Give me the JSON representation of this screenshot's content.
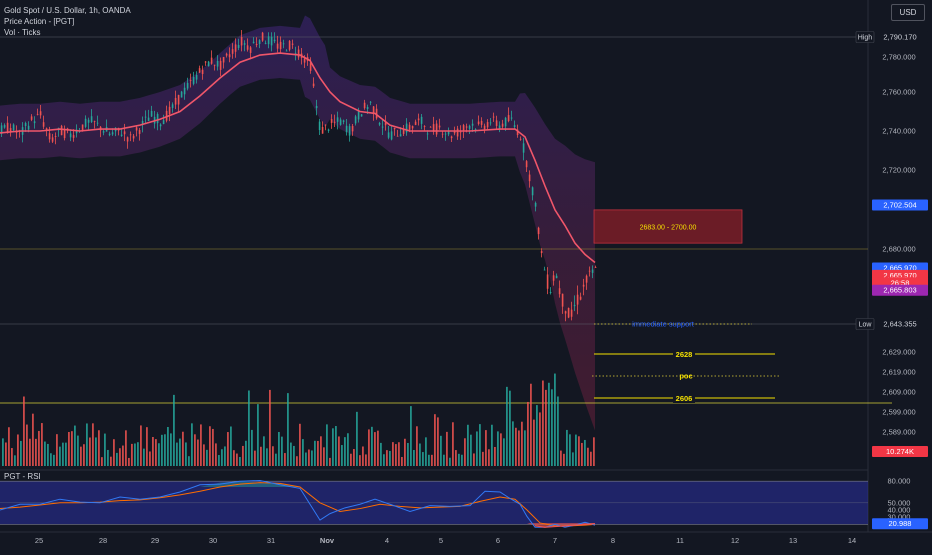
{
  "header": {
    "symbol": "Gold Spot / U.S. Dollar, 1h, OANDA",
    "indicator_1": "Price Action - [PGT]",
    "indicator_2": "Vol · Ticks",
    "currency": "USD"
  },
  "rsi_panel": {
    "title": "PGT - RSI"
  },
  "colors": {
    "background": "#131722",
    "up": "#26a69a",
    "down": "#ef5350",
    "ma": "#f0566a",
    "band": "#7b3fc4",
    "level": "#f5e100",
    "support": "#2962ff",
    "zone": "#8a1f28",
    "rsi": "#2962ff",
    "rsi_signal": "#ff6d00",
    "rsi_band": "#2a2fa3"
  },
  "chart_data": [
    {
      "type": "candlestick",
      "x_ticks": [
        "25",
        "28",
        "29",
        "30",
        "31",
        "Nov",
        "4",
        "5",
        "6",
        "7",
        "8",
        "11",
        "12",
        "13",
        "14"
      ],
      "y_ticks": [
        "2,780.000",
        "2,760.000",
        "2,740.000",
        "2,720.000",
        "2,680.000",
        "2,629.000",
        "2,619.000",
        "2,609.000",
        "2,599.000",
        "2,589.000"
      ],
      "price_labels": [
        {
          "text": "High",
          "value": "2,790.170",
          "price": 2790.17,
          "kind": "high"
        },
        {
          "text": "",
          "value": "2,702.504",
          "price": 2702.5,
          "kind": "blue"
        },
        {
          "text": "",
          "value": "2,665.970",
          "price": 2665.97,
          "kind": "blue"
        },
        {
          "text": "",
          "value": "2,665.970",
          "price": 2663.0,
          "kind": "red"
        },
        {
          "text": "",
          "value": "26:58",
          "price": 2660.0,
          "kind": "red"
        },
        {
          "text": "",
          "value": "2,665.803",
          "price": 2657.0,
          "kind": "purple"
        },
        {
          "text": "Low",
          "value": "2,643.355",
          "price": 2643.355,
          "kind": "low"
        }
      ],
      "volume_label": "10.274K",
      "y_range": [
        2590,
        2800
      ],
      "price_path": [
        [
          0,
          2740
        ],
        [
          10,
          2742
        ],
        [
          20,
          2738
        ],
        [
          30,
          2745
        ],
        [
          40,
          2748
        ],
        [
          50,
          2735
        ],
        [
          60,
          2740
        ],
        [
          70,
          2738
        ],
        [
          80,
          2742
        ],
        [
          90,
          2745
        ],
        [
          100,
          2742
        ],
        [
          110,
          2738
        ],
        [
          120,
          2740
        ],
        [
          130,
          2736
        ],
        [
          140,
          2742
        ],
        [
          150,
          2748
        ],
        [
          160,
          2745
        ],
        [
          170,
          2750
        ],
        [
          180,
          2758
        ],
        [
          190,
          2765
        ],
        [
          200,
          2772
        ],
        [
          210,
          2778
        ],
        [
          220,
          2775
        ],
        [
          230,
          2782
        ],
        [
          240,
          2788
        ],
        [
          250,
          2785
        ],
        [
          260,
          2790
        ],
        [
          270,
          2788
        ],
        [
          280,
          2785
        ],
        [
          290,
          2786
        ],
        [
          300,
          2782
        ],
        [
          310,
          2775
        ],
        [
          315,
          2755
        ],
        [
          320,
          2740
        ],
        [
          330,
          2743
        ],
        [
          340,
          2745
        ],
        [
          350,
          2740
        ],
        [
          360,
          2750
        ],
        [
          370,
          2754
        ],
        [
          380,
          2745
        ],
        [
          390,
          2738
        ],
        [
          400,
          2740
        ],
        [
          410,
          2742
        ],
        [
          420,
          2745
        ],
        [
          430,
          2740
        ],
        [
          440,
          2742
        ],
        [
          450,
          2738
        ],
        [
          460,
          2740
        ],
        [
          470,
          2744
        ],
        [
          480,
          2742
        ],
        [
          490,
          2745
        ],
        [
          500,
          2743
        ],
        [
          510,
          2746
        ],
        [
          520,
          2738
        ],
        [
          527,
          2722
        ],
        [
          532,
          2710
        ],
        [
          537,
          2695
        ],
        [
          540,
          2680
        ],
        [
          545,
          2662
        ],
        [
          550,
          2658
        ],
        [
          555,
          2665
        ],
        [
          560,
          2655
        ],
        [
          565,
          2650
        ],
        [
          570,
          2645
        ],
        [
          575,
          2652
        ],
        [
          580,
          2655
        ],
        [
          585,
          2660
        ],
        [
          590,
          2663
        ],
        [
          595,
          2665
        ]
      ],
      "ma_path": [
        [
          0,
          2739
        ],
        [
          20,
          2740
        ],
        [
          40,
          2740
        ],
        [
          60,
          2741
        ],
        [
          80,
          2740
        ],
        [
          100,
          2741
        ],
        [
          120,
          2741
        ],
        [
          140,
          2743
        ],
        [
          160,
          2746
        ],
        [
          180,
          2750
        ],
        [
          200,
          2758
        ],
        [
          220,
          2768
        ],
        [
          240,
          2777
        ],
        [
          260,
          2781
        ],
        [
          280,
          2782
        ],
        [
          300,
          2781
        ],
        [
          310,
          2778
        ],
        [
          320,
          2768
        ],
        [
          330,
          2760
        ],
        [
          340,
          2755
        ],
        [
          360,
          2750
        ],
        [
          375,
          2749
        ],
        [
          390,
          2743
        ],
        [
          410,
          2740
        ],
        [
          440,
          2740
        ],
        [
          470,
          2740
        ],
        [
          500,
          2741
        ],
        [
          515,
          2741
        ],
        [
          525,
          2737
        ],
        [
          535,
          2725
        ],
        [
          545,
          2712
        ],
        [
          555,
          2700
        ],
        [
          565,
          2692
        ],
        [
          575,
          2683
        ],
        [
          585,
          2676
        ],
        [
          595,
          2670
        ]
      ],
      "zone": {
        "label": "2683.00  -  2700.00",
        "from": 2683,
        "to": 2700
      },
      "levels": [
        {
          "label": "immediate support",
          "value": 2643.355,
          "kind": "support"
        },
        {
          "label": "2628",
          "value": 2628,
          "kind": "level"
        },
        {
          "label": "poc",
          "value": 2617,
          "kind": "poc"
        },
        {
          "label": "2606",
          "value": 2606,
          "kind": "level"
        }
      ]
    },
    {
      "type": "line",
      "title": "PGT - RSI",
      "y_ticks": [
        "80.000",
        "50.000",
        "40.000",
        "30.000"
      ],
      "last_value": "20.988",
      "y_range": [
        15,
        90
      ],
      "rsi": [
        [
          0,
          40
        ],
        [
          20,
          45
        ],
        [
          40,
          50
        ],
        [
          60,
          55
        ],
        [
          80,
          48
        ],
        [
          100,
          52
        ],
        [
          120,
          58
        ],
        [
          140,
          52
        ],
        [
          160,
          60
        ],
        [
          180,
          65
        ],
        [
          200,
          72
        ],
        [
          220,
          78
        ],
        [
          240,
          80
        ],
        [
          260,
          78
        ],
        [
          280,
          77
        ],
        [
          300,
          70
        ],
        [
          310,
          45
        ],
        [
          320,
          28
        ],
        [
          330,
          35
        ],
        [
          345,
          40
        ],
        [
          360,
          50
        ],
        [
          375,
          55
        ],
        [
          390,
          45
        ],
        [
          410,
          40
        ],
        [
          430,
          46
        ],
        [
          450,
          42
        ],
        [
          470,
          48
        ],
        [
          485,
          66
        ],
        [
          500,
          62
        ],
        [
          510,
          58
        ],
        [
          520,
          48
        ],
        [
          527,
          28
        ],
        [
          535,
          18
        ],
        [
          545,
          16
        ],
        [
          555,
          17
        ],
        [
          565,
          18
        ],
        [
          575,
          19
        ],
        [
          585,
          20
        ],
        [
          595,
          21
        ]
      ],
      "signal": [
        [
          0,
          42
        ],
        [
          20,
          44
        ],
        [
          40,
          47
        ],
        [
          60,
          50
        ],
        [
          80,
          50
        ],
        [
          100,
          51
        ],
        [
          120,
          53
        ],
        [
          140,
          54
        ],
        [
          160,
          57
        ],
        [
          180,
          61
        ],
        [
          200,
          66
        ],
        [
          220,
          72
        ],
        [
          240,
          76
        ],
        [
          260,
          78
        ],
        [
          280,
          77
        ],
        [
          300,
          72
        ],
        [
          320,
          50
        ],
        [
          340,
          38
        ],
        [
          360,
          42
        ],
        [
          380,
          48
        ],
        [
          400,
          45
        ],
        [
          420,
          43
        ],
        [
          440,
          44
        ],
        [
          460,
          45
        ],
        [
          480,
          52
        ],
        [
          500,
          58
        ],
        [
          515,
          55
        ],
        [
          527,
          40
        ],
        [
          540,
          22
        ],
        [
          555,
          18
        ],
        [
          570,
          18
        ],
        [
          585,
          19
        ],
        [
          595,
          20
        ]
      ]
    }
  ]
}
